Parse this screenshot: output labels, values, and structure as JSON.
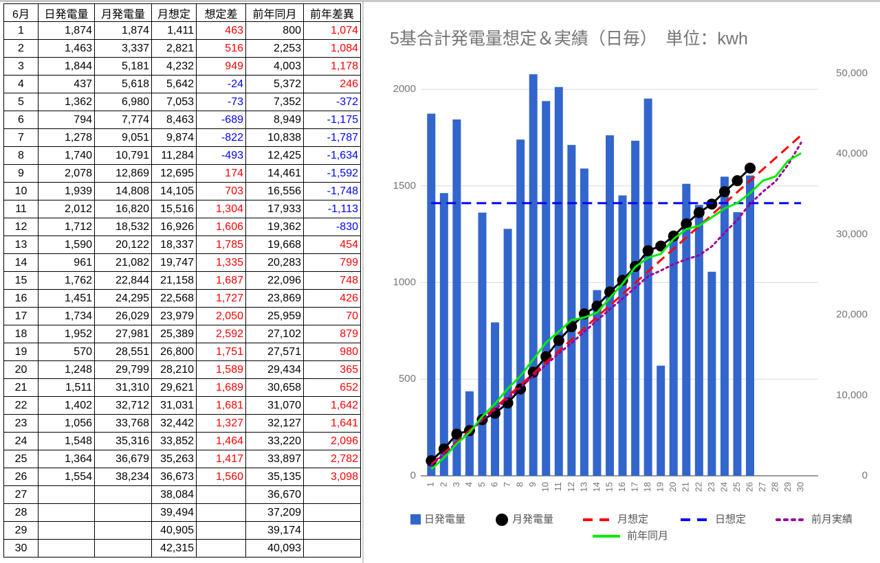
{
  "table": {
    "header": [
      "6月",
      "日発電量",
      "月発電量",
      "月想定",
      "想定差",
      "前年同月",
      "前年差異"
    ],
    "rows": [
      [
        "1",
        "1,874",
        "1,874",
        "1,411",
        "463",
        "800",
        "1,074"
      ],
      [
        "2",
        "1,463",
        "3,337",
        "2,821",
        "516",
        "2,253",
        "1,084"
      ],
      [
        "3",
        "1,844",
        "5,181",
        "4,232",
        "949",
        "4,003",
        "1,178"
      ],
      [
        "4",
        "437",
        "5,618",
        "5,642",
        "-24",
        "5,372",
        "246"
      ],
      [
        "5",
        "1,362",
        "6,980",
        "7,053",
        "-73",
        "7,352",
        "-372"
      ],
      [
        "6",
        "794",
        "7,774",
        "8,463",
        "-689",
        "8,949",
        "-1,175"
      ],
      [
        "7",
        "1,278",
        "9,051",
        "9,874",
        "-822",
        "10,838",
        "-1,787"
      ],
      [
        "8",
        "1,740",
        "10,791",
        "11,284",
        "-493",
        "12,425",
        "-1,634"
      ],
      [
        "9",
        "2,078",
        "12,869",
        "12,695",
        "174",
        "14,461",
        "-1,592"
      ],
      [
        "10",
        "1,939",
        "14,808",
        "14,105",
        "703",
        "16,556",
        "-1,748"
      ],
      [
        "11",
        "2,012",
        "16,820",
        "15,516",
        "1,304",
        "17,933",
        "-1,113"
      ],
      [
        "12",
        "1,712",
        "18,532",
        "16,926",
        "1,606",
        "19,362",
        "-830"
      ],
      [
        "13",
        "1,590",
        "20,122",
        "18,337",
        "1,785",
        "19,668",
        "454"
      ],
      [
        "14",
        "961",
        "21,082",
        "19,747",
        "1,335",
        "20,283",
        "799"
      ],
      [
        "15",
        "1,762",
        "22,844",
        "21,158",
        "1,687",
        "22,096",
        "748"
      ],
      [
        "16",
        "1,451",
        "24,295",
        "22,568",
        "1,727",
        "23,869",
        "426"
      ],
      [
        "17",
        "1,734",
        "26,029",
        "23,979",
        "2,050",
        "25,959",
        "70"
      ],
      [
        "18",
        "1,952",
        "27,981",
        "25,389",
        "2,592",
        "27,102",
        "879"
      ],
      [
        "19",
        "570",
        "28,551",
        "26,800",
        "1,751",
        "27,571",
        "980"
      ],
      [
        "20",
        "1,248",
        "29,799",
        "28,210",
        "1,589",
        "29,434",
        "365"
      ],
      [
        "21",
        "1,511",
        "31,310",
        "29,621",
        "1,689",
        "30,658",
        "652"
      ],
      [
        "22",
        "1,402",
        "32,712",
        "31,031",
        "1,681",
        "31,070",
        "1,642"
      ],
      [
        "23",
        "1,056",
        "33,768",
        "32,442",
        "1,327",
        "32,127",
        "1,641"
      ],
      [
        "24",
        "1,548",
        "35,316",
        "33,852",
        "1,464",
        "33,220",
        "2,096"
      ],
      [
        "25",
        "1,364",
        "36,679",
        "35,263",
        "1,417",
        "33,897",
        "2,782"
      ],
      [
        "26",
        "1,554",
        "38,234",
        "36,673",
        "1,560",
        "35,135",
        "3,098"
      ],
      [
        "27",
        null,
        null,
        "38,084",
        null,
        "36,670",
        null
      ],
      [
        "28",
        null,
        null,
        "39,494",
        null,
        "37,209",
        null
      ],
      [
        "29",
        null,
        null,
        "40,905",
        null,
        "39,174",
        null
      ],
      [
        "30",
        null,
        null,
        "42,315",
        null,
        "40,093",
        null
      ]
    ]
  },
  "chart_data": {
    "type": "combo",
    "title": "5基合計発電量想定＆実績（日毎）　単位：kwh",
    "categories": [
      "1",
      "2",
      "3",
      "4",
      "5",
      "6",
      "7",
      "8",
      "9",
      "10",
      "11",
      "12",
      "13",
      "14",
      "15",
      "16",
      "17",
      "18",
      "19",
      "20",
      "21",
      "22",
      "23",
      "24",
      "25",
      "26",
      "27",
      "28",
      "29",
      "30"
    ],
    "ylim": [
      0,
      2082
    ],
    "yticks": [
      0,
      500,
      1000,
      1500,
      2000
    ],
    "y2lim": [
      0,
      50000
    ],
    "y2ticks": [
      0,
      {
        "value": 10000,
        "label": "10,000"
      },
      {
        "value": 20000,
        "label": "20,000"
      },
      {
        "value": 30000,
        "label": "30,000"
      },
      {
        "value": 40000,
        "label": "40,000"
      },
      {
        "value": 50000,
        "label": "50,000"
      }
    ],
    "grid": true,
    "legend": "bottom",
    "series": [
      {
        "name": "日発電量",
        "color": "#3366cc",
        "mark": "bar",
        "values": [
          1874,
          1463,
          1844,
          437,
          1362,
          794,
          1278,
          1740,
          2078,
          1939,
          2012,
          1712,
          1590,
          961,
          1762,
          1451,
          1734,
          1952,
          570,
          1248,
          1511,
          1402,
          1056,
          1548,
          1364,
          1554,
          null,
          null,
          null,
          null
        ]
      },
      {
        "name": "月発電量",
        "color": "#000000",
        "mark": "dot-line",
        "axis": "y2",
        "values": [
          1874,
          3337,
          5181,
          5618,
          6980,
          7774,
          9051,
          10791,
          12869,
          14808,
          16820,
          18532,
          20122,
          21082,
          22844,
          24295,
          26029,
          27981,
          28551,
          29799,
          31310,
          32712,
          33768,
          35316,
          36679,
          38234,
          null,
          null,
          null,
          null
        ]
      },
      {
        "name": "月想定",
        "color": "#ff0000",
        "mark": "dashed",
        "axis": "y2",
        "values": [
          1411,
          2821,
          4232,
          5642,
          7053,
          8463,
          9874,
          11284,
          12695,
          14105,
          15516,
          16926,
          18337,
          19747,
          21158,
          22568,
          23979,
          25389,
          26800,
          28210,
          29621,
          31031,
          32442,
          33852,
          35263,
          36673,
          38084,
          39494,
          40905,
          42315
        ]
      },
      {
        "name": "日想定",
        "color": "#0000ff",
        "mark": "dashed",
        "values": [
          1411,
          1411,
          1411,
          1411,
          1411,
          1411,
          1411,
          1411,
          1411,
          1411,
          1411,
          1411,
          1411,
          1411,
          1411,
          1411,
          1411,
          1411,
          1411,
          1411,
          1411,
          1411,
          1411,
          1411,
          1411,
          1411,
          1411,
          1411,
          1411,
          1411
        ]
      },
      {
        "name": "前月実績",
        "color": "#990099",
        "mark": "dotted",
        "axis": "y2",
        "values": [
          1300,
          2700,
          4100,
          5500,
          6900,
          8200,
          9600,
          11000,
          12400,
          13800,
          15200,
          16500,
          17900,
          19300,
          20700,
          22000,
          23400,
          24800,
          25500,
          26300,
          26900,
          27400,
          28500,
          30200,
          31800,
          33800,
          35300,
          36600,
          38700,
          41400
        ]
      },
      {
        "name": "前年同月",
        "color": "#00ee00",
        "mark": "line",
        "axis": "y2",
        "values": [
          800,
          2253,
          4003,
          5372,
          7352,
          8949,
          10838,
          12425,
          14461,
          16556,
          17933,
          19362,
          19668,
          20283,
          22096,
          23869,
          25959,
          27102,
          27571,
          29434,
          30658,
          31070,
          32127,
          33220,
          33897,
          35135,
          36670,
          37209,
          39174,
          40093
        ]
      }
    ]
  }
}
